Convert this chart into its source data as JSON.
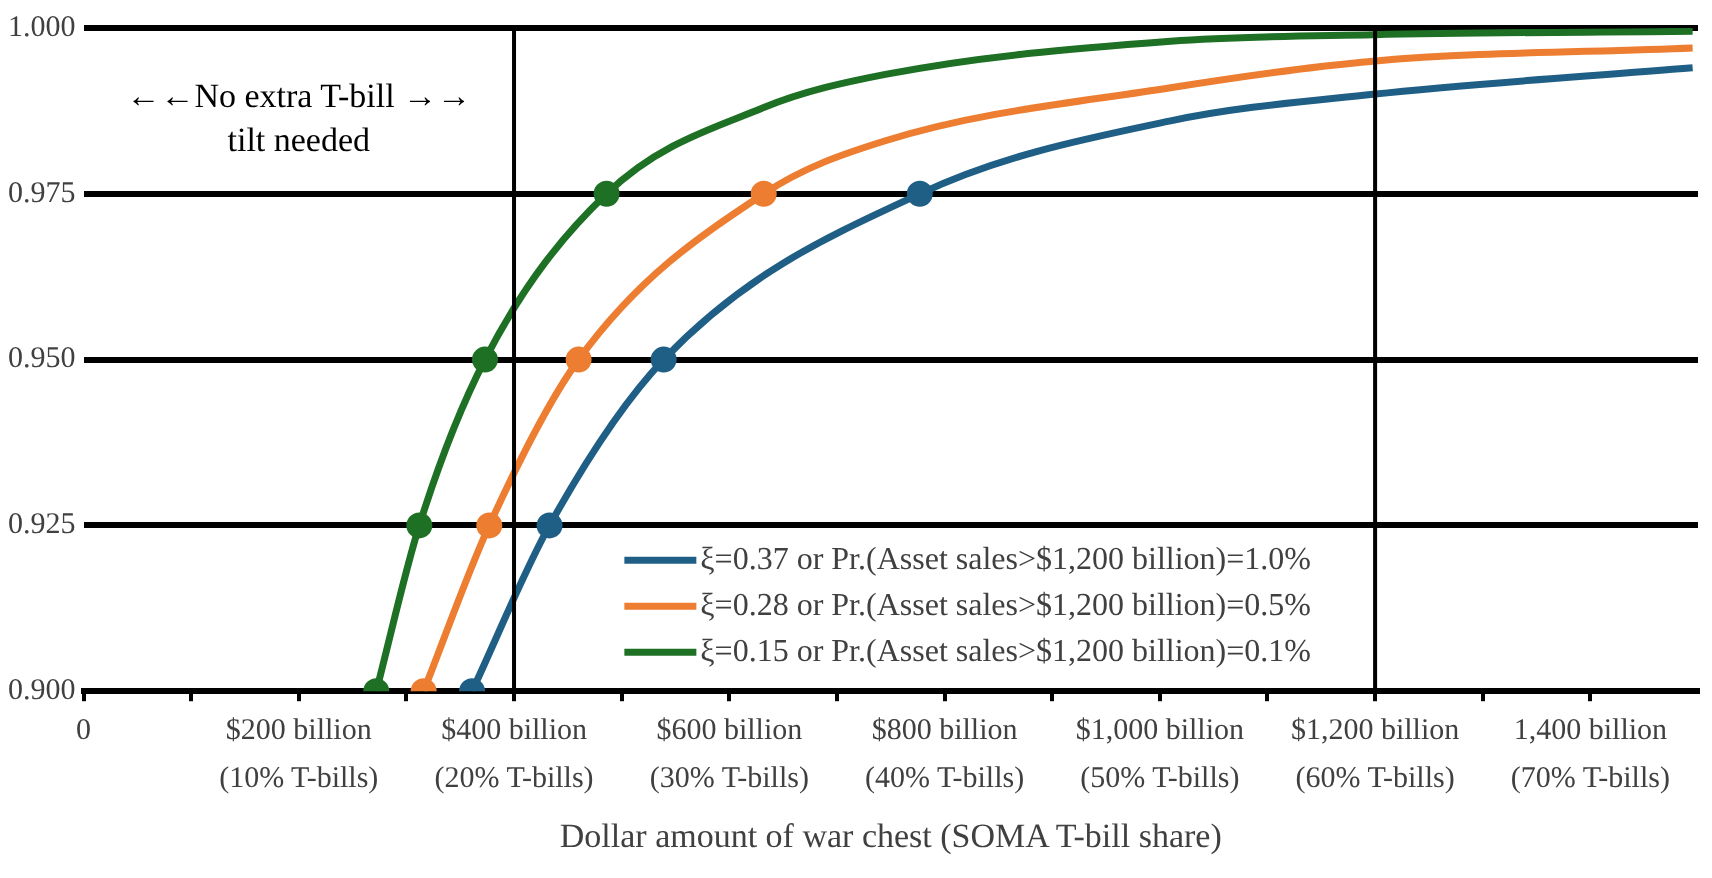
{
  "chart_data": {
    "type": "line",
    "xlabel": "Dollar amount of war chest (SOMA T-bill share)",
    "annotations": [
      "←←No extra T-bill →→\ntilt needed"
    ],
    "xlim": [
      0,
      1500
    ],
    "xticks": [
      0,
      {
        "value": 100,
        "label": null
      },
      {
        "value": 200,
        "label": "$200 billion"
      },
      {
        "value": 300,
        "label": null
      },
      {
        "value": 400,
        "label": "$400 billion"
      },
      {
        "value": 500,
        "label": null
      },
      {
        "value": 600,
        "label": "$600 billion"
      },
      {
        "value": 700,
        "label": null
      },
      {
        "value": 800,
        "label": "$800 billion"
      },
      {
        "value": 900,
        "label": null
      },
      {
        "value": 1000,
        "label": "$1,000 billion"
      },
      {
        "value": 1100,
        "label": null
      },
      {
        "value": 1200,
        "label": "$1,200 billion"
      },
      {
        "value": 1300,
        "label": null
      },
      {
        "value": 1400,
        "label": "1,400 billion"
      }
    ],
    "x2lim": [
      0,
      75
    ],
    "x2ticks": [
      {
        "value": 10,
        "label": "(10% T-bills)"
      },
      {
        "value": 20,
        "label": "(20% T-bills)"
      },
      {
        "value": 30,
        "label": "(30% T-bills)"
      },
      {
        "value": 40,
        "label": "(40% T-bills)"
      },
      {
        "value": 50,
        "label": "(50% T-bills)"
      },
      {
        "value": 60,
        "label": "(60% T-bills)"
      },
      {
        "value": 70,
        "label": "(70% T-bills)"
      }
    ],
    "ylim": [
      0.9,
      1.0
    ],
    "yticks": [
      {
        "value": 0.9,
        "label": "0.900"
      },
      {
        "value": 0.925,
        "label": "0.925"
      },
      {
        "value": 0.95,
        "label": "0.950"
      },
      {
        "value": 0.975,
        "label": "0.975"
      },
      {
        "value": 1.0,
        "label": "1.000"
      }
    ],
    "grid": "y",
    "legend": "bottom",
    "line_style": "solid",
    "ref_lines": [
      {
        "axis": "x",
        "value": 400,
        "color": "#000000"
      },
      {
        "axis": "x",
        "value": 1200,
        "color": "#000000"
      }
    ],
    "series": [
      {
        "name": "ξ=0.37 or Pr.(Asset sales>$1,200 billion)=1.0%",
        "color": "#1f5f86",
        "marker": "none",
        "x": [
          361,
          433,
          539,
          777,
          1010,
          1198,
          1495
        ],
        "values": [
          0.9,
          0.925,
          0.95,
          0.975,
          0.986,
          0.99,
          0.994
        ]
      },
      {
        "name": "ξ=0.28 or Pr.(Asset sales>$1,200 billion)=0.5%",
        "color": "#ed7d31",
        "marker": "none",
        "x": [
          316,
          377,
          460,
          632,
          745,
          1010,
          1198,
          1495
        ],
        "values": [
          0.9,
          0.925,
          0.95,
          0.975,
          0.983,
          0.991,
          0.995,
          0.997
        ]
      },
      {
        "name": "ξ=0.15 or Pr.(Asset sales>$1,200 billion)=0.1%",
        "color": "#1e7025",
        "marker": "none",
        "x": [
          272,
          312,
          373,
          486,
          632,
          745,
          1010,
          1198,
          1495
        ],
        "values": [
          0.9,
          0.925,
          0.95,
          0.975,
          0.988,
          0.993,
          0.998,
          0.999,
          0.9995
        ]
      },
      {
        "type": "scatter",
        "color": "#1f5f86",
        "marker": "circle",
        "x": [
          361,
          433,
          539,
          777
        ],
        "values": [
          0.9,
          0.925,
          0.95,
          0.975
        ]
      },
      {
        "type": "scatter",
        "color": "#ed7d31",
        "marker": "circle",
        "x": [
          316,
          377,
          460,
          632
        ],
        "values": [
          0.9,
          0.925,
          0.95,
          0.975
        ]
      },
      {
        "type": "scatter",
        "color": "#1e7025",
        "marker": "circle",
        "x": [
          272,
          312,
          373,
          486
        ],
        "values": [
          0.9,
          0.925,
          0.95,
          0.975
        ]
      }
    ]
  }
}
